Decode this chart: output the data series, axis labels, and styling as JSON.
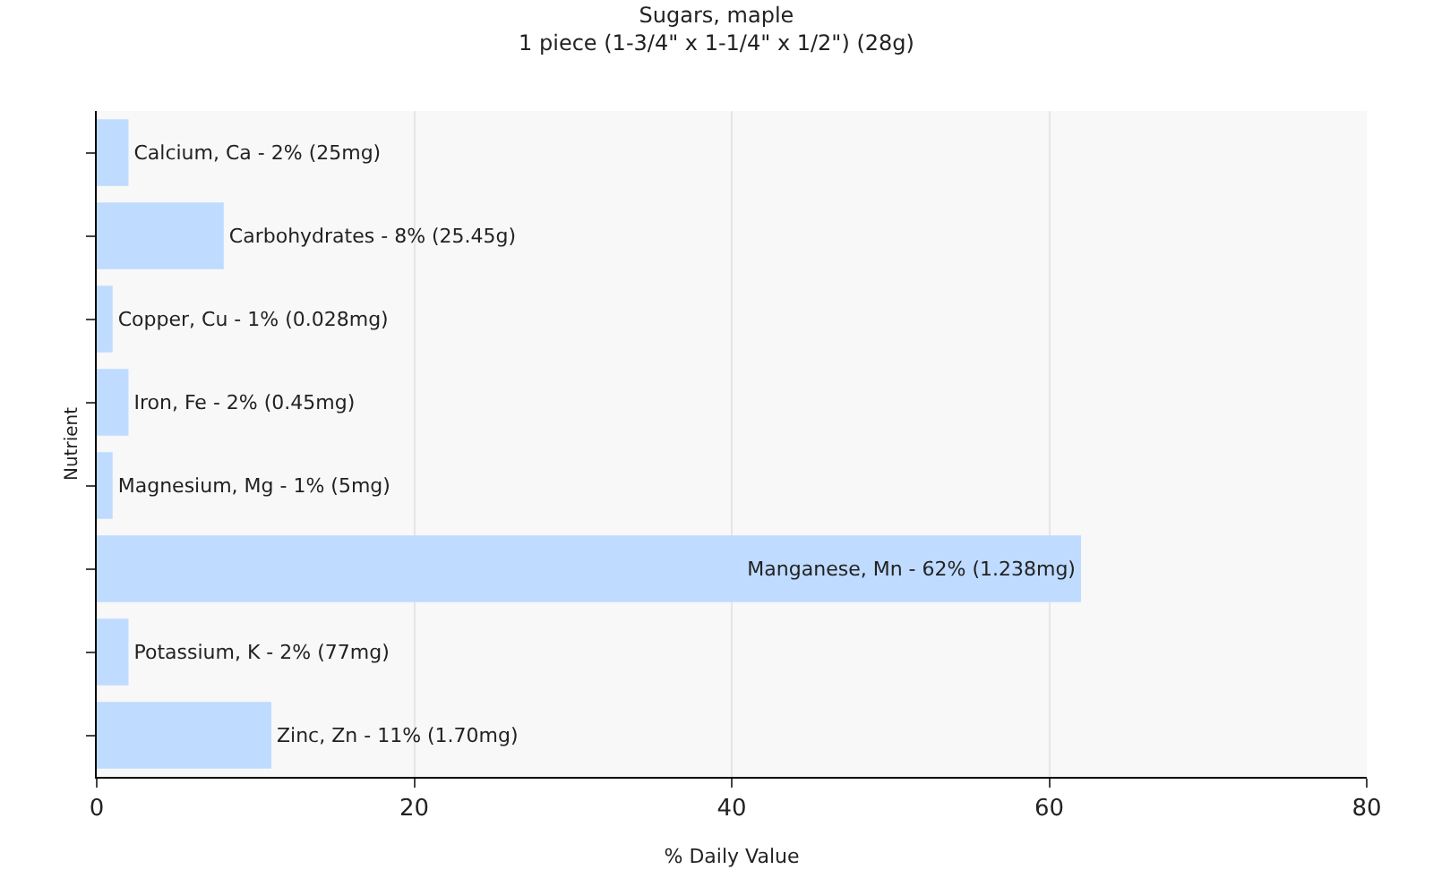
{
  "chart_data": {
    "type": "bar",
    "orientation": "horizontal",
    "title": "Sugars, maple",
    "subtitle": "1 piece (1-3/4\" x 1-1/4\" x 1/2\") (28g)",
    "xlabel": "% Daily Value",
    "ylabel": "Nutrient",
    "categories": [
      "Calcium, Ca -",
      "Carbohydrates -",
      "Copper, Cu -",
      "Iron, Fe -",
      "Magnesium, Mg -",
      "Manganese, Mn -",
      "Potassium, K -",
      "Zinc, Zn -"
    ],
    "values": [
      2,
      8,
      1,
      2,
      1,
      62,
      2,
      11
    ],
    "value_labels": [
      "2% (25mg)",
      "8% (25.45g)",
      "1% (0.028mg)",
      "2% (0.45mg)",
      "1% (5mg)",
      "62% (1.238mg)",
      "2% (77mg)",
      "11% (1.70mg)"
    ],
    "color": "#bfdbff",
    "xlim": [
      0,
      80
    ],
    "xticks": [
      0,
      20,
      40,
      60,
      80
    ],
    "grid": "x",
    "tick_labels": "x",
    "legend": false
  }
}
